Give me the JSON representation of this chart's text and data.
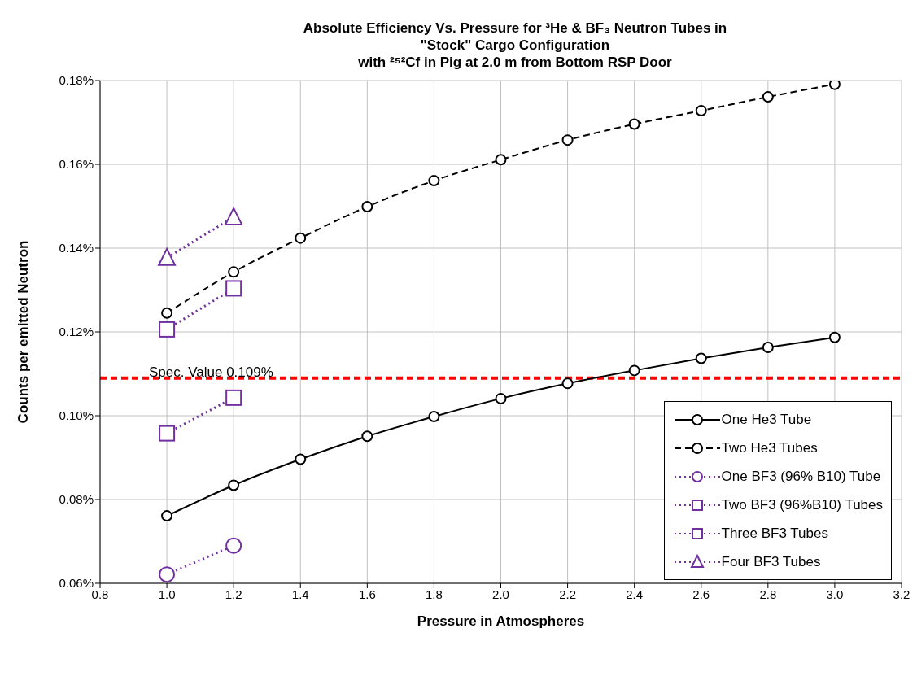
{
  "chart_data": {
    "type": "line",
    "title": "Absolute Efficiency Vs. Pressure for ³He & BF₃ Neutron Tubes in\n\"Stock\" Cargo Configuration\nwith ²⁵²Cf in Pig at 2.0 m from Bottom RSP Door",
    "xlabel": "Pressure in Atmospheres",
    "ylabel": "Counts per emitted Neutron",
    "xlim": [
      0.8,
      3.2
    ],
    "xticks": [
      {
        "value": 0.8,
        "label": "0.8"
      },
      {
        "value": 1.0,
        "label": "1.0"
      },
      {
        "value": 1.2,
        "label": "1.2"
      },
      {
        "value": 1.4,
        "label": "1.4"
      },
      {
        "value": 1.6,
        "label": "1.6"
      },
      {
        "value": 1.8,
        "label": "1.8"
      },
      {
        "value": 2.0,
        "label": "2.0"
      },
      {
        "value": 2.2,
        "label": "2.2"
      },
      {
        "value": 2.4,
        "label": "2.4"
      },
      {
        "value": 2.6,
        "label": "2.6"
      },
      {
        "value": 2.8,
        "label": "2.8"
      },
      {
        "value": 3.0,
        "label": "3.0"
      },
      {
        "value": 3.2,
        "label": "3.2"
      }
    ],
    "ylim": [
      0.06,
      0.18
    ],
    "yticks": [
      {
        "value": 0.06,
        "label": "0.06%"
      },
      {
        "value": 0.08,
        "label": "0.08%"
      },
      {
        "value": 0.1,
        "label": "0.10%"
      },
      {
        "value": 0.12,
        "label": "0.12%"
      },
      {
        "value": 0.14,
        "label": "0.14%"
      },
      {
        "value": 0.16,
        "label": "0.16%"
      },
      {
        "value": 0.18,
        "label": "0.18%"
      }
    ],
    "grid": true,
    "legend": "bottom right",
    "ref_lines": [
      {
        "axis": "y",
        "value": 0.109,
        "label": "Spec. Value  0.109%",
        "color": "#ff0000",
        "line_style": "dashed"
      }
    ],
    "series": [
      {
        "name": "One He3 Tube",
        "color": "#000000",
        "marker": "circle",
        "line_style": "solid",
        "x": [
          1.0,
          1.2,
          1.4,
          1.6,
          1.8,
          2.0,
          2.2,
          2.4,
          2.6,
          2.8,
          3.0
        ],
        "values": [
          0.0761,
          0.0834,
          0.0896,
          0.0951,
          0.0998,
          0.1041,
          0.1077,
          0.1108,
          0.1137,
          0.1163,
          0.1187
        ]
      },
      {
        "name": "Two He3 Tubes",
        "color": "#000000",
        "marker": "circle",
        "line_style": "dashed",
        "x": [
          1.0,
          1.2,
          1.4,
          1.6,
          1.8,
          2.0,
          2.2,
          2.4,
          2.6,
          2.8,
          3.0
        ],
        "values": [
          0.1245,
          0.1343,
          0.1424,
          0.1499,
          0.1561,
          0.1611,
          0.1658,
          0.1696,
          0.1728,
          0.1761,
          0.1791
        ]
      },
      {
        "name": "One BF3 (96% B10) Tube",
        "color": "#7030a0",
        "marker": "circle",
        "line_style": "dotted",
        "x": [
          1.0,
          1.2
        ],
        "values": [
          0.0621,
          0.069
        ]
      },
      {
        "name": "Two BF3 (96%B10) Tubes",
        "color": "#7030a0",
        "marker": "square",
        "line_style": "dotted",
        "x": [
          1.0,
          1.2
        ],
        "values": [
          0.0958,
          0.1043
        ]
      },
      {
        "name": "Three BF3 Tubes",
        "color": "#7030a0",
        "marker": "square",
        "line_style": "dotted",
        "x": [
          1.0,
          1.2
        ],
        "values": [
          0.1206,
          0.1304
        ]
      },
      {
        "name": "Four BF3 Tubes",
        "color": "#7030a0",
        "marker": "triangle",
        "line_style": "dotted",
        "x": [
          1.0,
          1.2
        ],
        "values": [
          0.1377,
          0.1474
        ]
      }
    ]
  }
}
